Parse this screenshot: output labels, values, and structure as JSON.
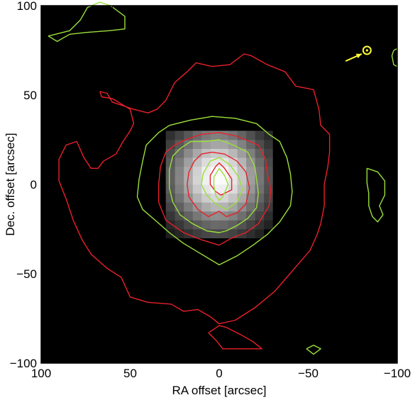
{
  "chart_data": {
    "type": "heatmap",
    "title": "",
    "xlabel": "RA offset [arcsec]",
    "ylabel": "Dec. offset [arcsec]",
    "xlim": [
      100,
      -100
    ],
    "ylim": [
      -100,
      100
    ],
    "xticks": [
      100,
      50,
      0,
      -50,
      -100
    ],
    "yticks": [
      -100,
      -50,
      0,
      50,
      100
    ],
    "xtick_labels": [
      "100",
      "50",
      "0",
      "−50",
      "−100"
    ],
    "ytick_labels": [
      "−100",
      "−50",
      "0",
      "50",
      "100"
    ],
    "colors": {
      "background": "#000000",
      "contour_a": "#9be03a",
      "contour_b": "#e8202a",
      "marker": "#ffff33"
    },
    "image": {
      "center": [
        1,
        4
      ],
      "sigma_x": 18,
      "sigma_y": 19,
      "pixel": 5,
      "extent": 30
    },
    "contours": [
      {
        "color": "contour_a",
        "points": [
          [
            96,
            83
          ],
          [
            84,
            86
          ],
          [
            78,
            92
          ],
          [
            74,
            99
          ],
          [
            67,
            102
          ],
          [
            61,
            100
          ],
          [
            53,
            94
          ],
          [
            53,
            87
          ],
          [
            62,
            86
          ],
          [
            75,
            85
          ],
          [
            84,
            84
          ],
          [
            91,
            80
          ],
          [
            96,
            83
          ]
        ]
      },
      {
        "color": "contour_b",
        "points": [
          [
            67,
            52
          ],
          [
            63,
            51
          ],
          [
            60,
            46
          ],
          [
            54,
            44
          ],
          [
            48,
            42
          ],
          [
            40,
            40
          ],
          [
            35,
            42
          ],
          [
            30,
            47
          ],
          [
            25,
            57
          ],
          [
            18,
            63
          ],
          [
            13,
            68
          ],
          [
            4,
            66
          ],
          [
            -6,
            67
          ],
          [
            -14,
            73
          ],
          [
            -18,
            72
          ],
          [
            -27,
            67
          ],
          [
            -37,
            63
          ],
          [
            -43,
            55
          ],
          [
            -53,
            53
          ],
          [
            -56,
            42
          ],
          [
            -57,
            33
          ],
          [
            -62,
            28
          ],
          [
            -62,
            18
          ],
          [
            -61,
            10
          ],
          [
            -59,
            0
          ],
          [
            -59,
            -12
          ],
          [
            -57,
            -22
          ],
          [
            -55,
            -28
          ],
          [
            -51,
            -37
          ],
          [
            -44,
            -45
          ],
          [
            -38,
            -52
          ],
          [
            -31,
            -60
          ],
          [
            -20,
            -69
          ],
          [
            -9,
            -76
          ],
          [
            0,
            -78
          ],
          [
            5,
            -74
          ],
          [
            12,
            -70
          ],
          [
            20,
            -71
          ],
          [
            27,
            -67
          ],
          [
            40,
            -66
          ],
          [
            50,
            -63
          ],
          [
            55,
            -52
          ],
          [
            63,
            -47
          ],
          [
            72,
            -39
          ],
          [
            77,
            -31
          ],
          [
            82,
            -20
          ],
          [
            86,
            -8
          ],
          [
            90,
            2
          ],
          [
            90,
            14
          ],
          [
            86,
            22
          ],
          [
            80,
            24
          ],
          [
            76,
            15
          ],
          [
            72,
            9
          ],
          [
            68,
            9
          ],
          [
            65,
            13
          ],
          [
            58,
            17
          ],
          [
            54,
            24
          ],
          [
            50,
            30
          ],
          [
            48,
            34
          ],
          [
            50,
            42
          ],
          [
            60,
            48
          ],
          [
            66,
            49
          ],
          [
            67,
            52
          ]
        ]
      },
      {
        "color": "contour_a",
        "points": [
          [
            28,
            33
          ],
          [
            16,
            36
          ],
          [
            4,
            38
          ],
          [
            -9,
            37
          ],
          [
            -21,
            34
          ],
          [
            -28,
            28
          ],
          [
            -34,
            24
          ],
          [
            -38,
            15
          ],
          [
            -40,
            6
          ],
          [
            -41,
            -4
          ],
          [
            -40,
            -12
          ],
          [
            -34,
            -21
          ],
          [
            -27,
            -28
          ],
          [
            -19,
            -34
          ],
          [
            -10,
            -40
          ],
          [
            0,
            -45
          ],
          [
            10,
            -39
          ],
          [
            20,
            -33
          ],
          [
            28,
            -27
          ],
          [
            36,
            -20
          ],
          [
            43,
            -14
          ],
          [
            46,
            -7
          ],
          [
            45,
            3
          ],
          [
            43,
            13
          ],
          [
            41,
            22
          ],
          [
            34,
            29
          ],
          [
            28,
            33
          ]
        ]
      },
      {
        "color": "contour_b",
        "points": [
          [
            19,
            25
          ],
          [
            10,
            28
          ],
          [
            0,
            29
          ],
          [
            -10,
            27
          ],
          [
            -22,
            22
          ],
          [
            -26,
            14
          ],
          [
            -27,
            6
          ],
          [
            -29,
            -3
          ],
          [
            -28,
            -12
          ],
          [
            -22,
            -22
          ],
          [
            -15,
            -27
          ],
          [
            -7,
            -30
          ],
          [
            0,
            -34
          ],
          [
            10,
            -31
          ],
          [
            20,
            -27
          ],
          [
            30,
            -20
          ],
          [
            34,
            -10
          ],
          [
            34,
            0
          ],
          [
            33,
            10
          ],
          [
            30,
            18
          ],
          [
            25,
            22
          ],
          [
            19,
            25
          ]
        ]
      },
      {
        "color": "contour_a",
        "points": [
          [
            16,
            24
          ],
          [
            8,
            24
          ],
          [
            0,
            25
          ],
          [
            -8,
            22
          ],
          [
            -16,
            18
          ],
          [
            -20,
            10
          ],
          [
            -21,
            3
          ],
          [
            -22,
            -5
          ],
          [
            -21,
            -13
          ],
          [
            -16,
            -19
          ],
          [
            -10,
            -23
          ],
          [
            -4,
            -26
          ],
          [
            0,
            -27
          ],
          [
            7,
            -26
          ],
          [
            15,
            -22
          ],
          [
            22,
            -17
          ],
          [
            26,
            -10
          ],
          [
            28,
            -2
          ],
          [
            28,
            8
          ],
          [
            26,
            16
          ],
          [
            22,
            20
          ],
          [
            16,
            24
          ]
        ]
      },
      {
        "color": "contour_b",
        "points": [
          [
            10,
            17
          ],
          [
            4,
            18
          ],
          [
            -3,
            17
          ],
          [
            -10,
            13
          ],
          [
            -15,
            7
          ],
          [
            -17,
            -2
          ],
          [
            -15,
            -11
          ],
          [
            -10,
            -16
          ],
          [
            -4,
            -18
          ],
          [
            0,
            -15
          ],
          [
            6,
            -18
          ],
          [
            12,
            -14
          ],
          [
            17,
            -7
          ],
          [
            18,
            0
          ],
          [
            17,
            7
          ],
          [
            14,
            13
          ],
          [
            10,
            17
          ]
        ]
      },
      {
        "color": "contour_a",
        "points": [
          [
            5,
            13
          ],
          [
            0,
            15
          ],
          [
            -6,
            11
          ],
          [
            -11,
            4
          ],
          [
            -13,
            -3
          ],
          [
            -10,
            -10
          ],
          [
            -4,
            -14
          ],
          [
            2,
            -11
          ],
          [
            7,
            -6
          ],
          [
            10,
            0
          ],
          [
            9,
            6
          ],
          [
            5,
            13
          ]
        ]
      },
      {
        "color": "contour_b",
        "points": [
          [
            2,
            10
          ],
          [
            0,
            12
          ],
          [
            -3,
            9
          ],
          [
            -7,
            3
          ],
          [
            -7,
            -3
          ],
          [
            -3,
            -5
          ],
          [
            -1,
            -6
          ],
          [
            2,
            -4
          ],
          [
            5,
            0
          ],
          [
            5,
            5
          ],
          [
            2,
            10
          ]
        ]
      },
      {
        "color": "contour_a",
        "points": [
          [
            0,
            9
          ],
          [
            -3,
            5
          ],
          [
            -5,
            0
          ],
          [
            -2,
            -7
          ],
          [
            0,
            -9
          ],
          [
            2,
            -6
          ],
          [
            3,
            -1
          ],
          [
            3,
            4
          ],
          [
            0,
            9
          ]
        ]
      },
      {
        "color": "contour_a",
        "points": [
          [
            -83,
            9
          ],
          [
            -89,
            7
          ],
          [
            -93,
            2
          ],
          [
            -93,
            -6
          ],
          [
            -90,
            -12
          ],
          [
            -92,
            -17
          ],
          [
            -89,
            -21
          ],
          [
            -86,
            -18
          ],
          [
            -84,
            -12
          ],
          [
            -84,
            -5
          ],
          [
            -83,
            1
          ],
          [
            -83,
            9
          ]
        ]
      },
      {
        "color": "contour_a",
        "points": [
          [
            -98,
            75
          ],
          [
            -97,
            72
          ],
          [
            -98,
            67
          ],
          [
            -100,
            66
          ],
          [
            -100,
            76
          ],
          [
            -98,
            75
          ]
        ]
      },
      {
        "color": "contour_b",
        "points": [
          [
            6,
            -83
          ],
          [
            2,
            -87
          ],
          [
            -2,
            -92
          ],
          [
            -15,
            -92
          ],
          [
            -24,
            -92
          ],
          [
            -19,
            -88
          ],
          [
            -12,
            -84
          ],
          [
            -4,
            -80
          ],
          [
            0,
            -79
          ],
          [
            6,
            -83
          ]
        ]
      },
      {
        "color": "contour_a",
        "points": [
          [
            -49,
            -92
          ],
          [
            -53,
            -95
          ],
          [
            -57,
            -92
          ],
          [
            -53,
            -90
          ],
          [
            -49,
            -92
          ]
        ]
      }
    ],
    "marker": {
      "x": -83,
      "y": 75,
      "arrow_from": [
        -71,
        69
      ],
      "arrow_to": [
        -80,
        73
      ]
    }
  }
}
